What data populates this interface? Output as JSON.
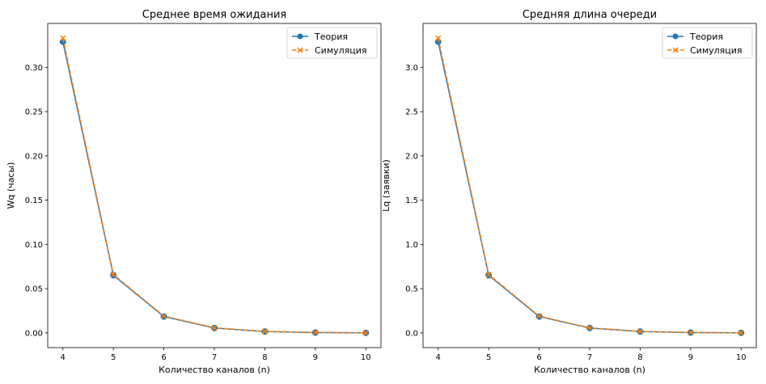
{
  "chart_data": [
    {
      "type": "line",
      "title": "Среднее время ожидания",
      "xlabel": "Количество каналов (n)",
      "ylabel": "Wq (часы)",
      "x": [
        4,
        5,
        6,
        7,
        8,
        9,
        10
      ],
      "xticks": [
        "4",
        "5",
        "6",
        "7",
        "8",
        "9",
        "10"
      ],
      "xlim": [
        3.7,
        10.3
      ],
      "ylim": [
        -0.0166,
        0.3496
      ],
      "yticks": [
        0,
        0.05,
        0.1,
        0.15,
        0.2,
        0.25,
        0.3
      ],
      "yticklabels": [
        "0.00",
        "0.05",
        "0.10",
        "0.15",
        "0.20",
        "0.25",
        "0.30"
      ],
      "legend_position": "top-right",
      "grid": false,
      "series": [
        {
          "name": "Теория",
          "values": [
            0.329,
            0.0651,
            0.0185,
            0.0055,
            0.0016,
            0.0004,
            0.0001
          ],
          "color": "#1f77b4",
          "linestyle": "solid",
          "marker": "circle"
        },
        {
          "name": "Симуляция",
          "values": [
            0.333,
            0.066,
            0.019,
            0.0058,
            0.0017,
            0.0005,
            0.0001
          ],
          "color": "#ff7f0e",
          "linestyle": "dashed",
          "marker": "x"
        }
      ]
    },
    {
      "type": "line",
      "title": "Средняя длина очереди",
      "xlabel": "Количество каналов (n)",
      "ylabel": "Lq (заявки)",
      "x": [
        4,
        5,
        6,
        7,
        8,
        9,
        10
      ],
      "xticks": [
        "4",
        "5",
        "6",
        "7",
        "8",
        "9",
        "10"
      ],
      "xlim": [
        3.7,
        10.3
      ],
      "ylim": [
        -0.166,
        3.496
      ],
      "yticks": [
        0,
        0.5,
        1.0,
        1.5,
        2.0,
        2.5,
        3.0
      ],
      "yticklabels": [
        "0.0",
        "0.5",
        "1.0",
        "1.5",
        "2.0",
        "2.5",
        "3.0"
      ],
      "legend_position": "top-right",
      "grid": false,
      "series": [
        {
          "name": "Теория",
          "values": [
            3.29,
            0.651,
            0.185,
            0.055,
            0.016,
            0.004,
            0.001
          ],
          "color": "#1f77b4",
          "linestyle": "solid",
          "marker": "circle"
        },
        {
          "name": "Симуляция",
          "values": [
            3.33,
            0.66,
            0.19,
            0.058,
            0.017,
            0.005,
            0.001
          ],
          "color": "#ff7f0e",
          "linestyle": "dashed",
          "marker": "x"
        }
      ]
    }
  ]
}
